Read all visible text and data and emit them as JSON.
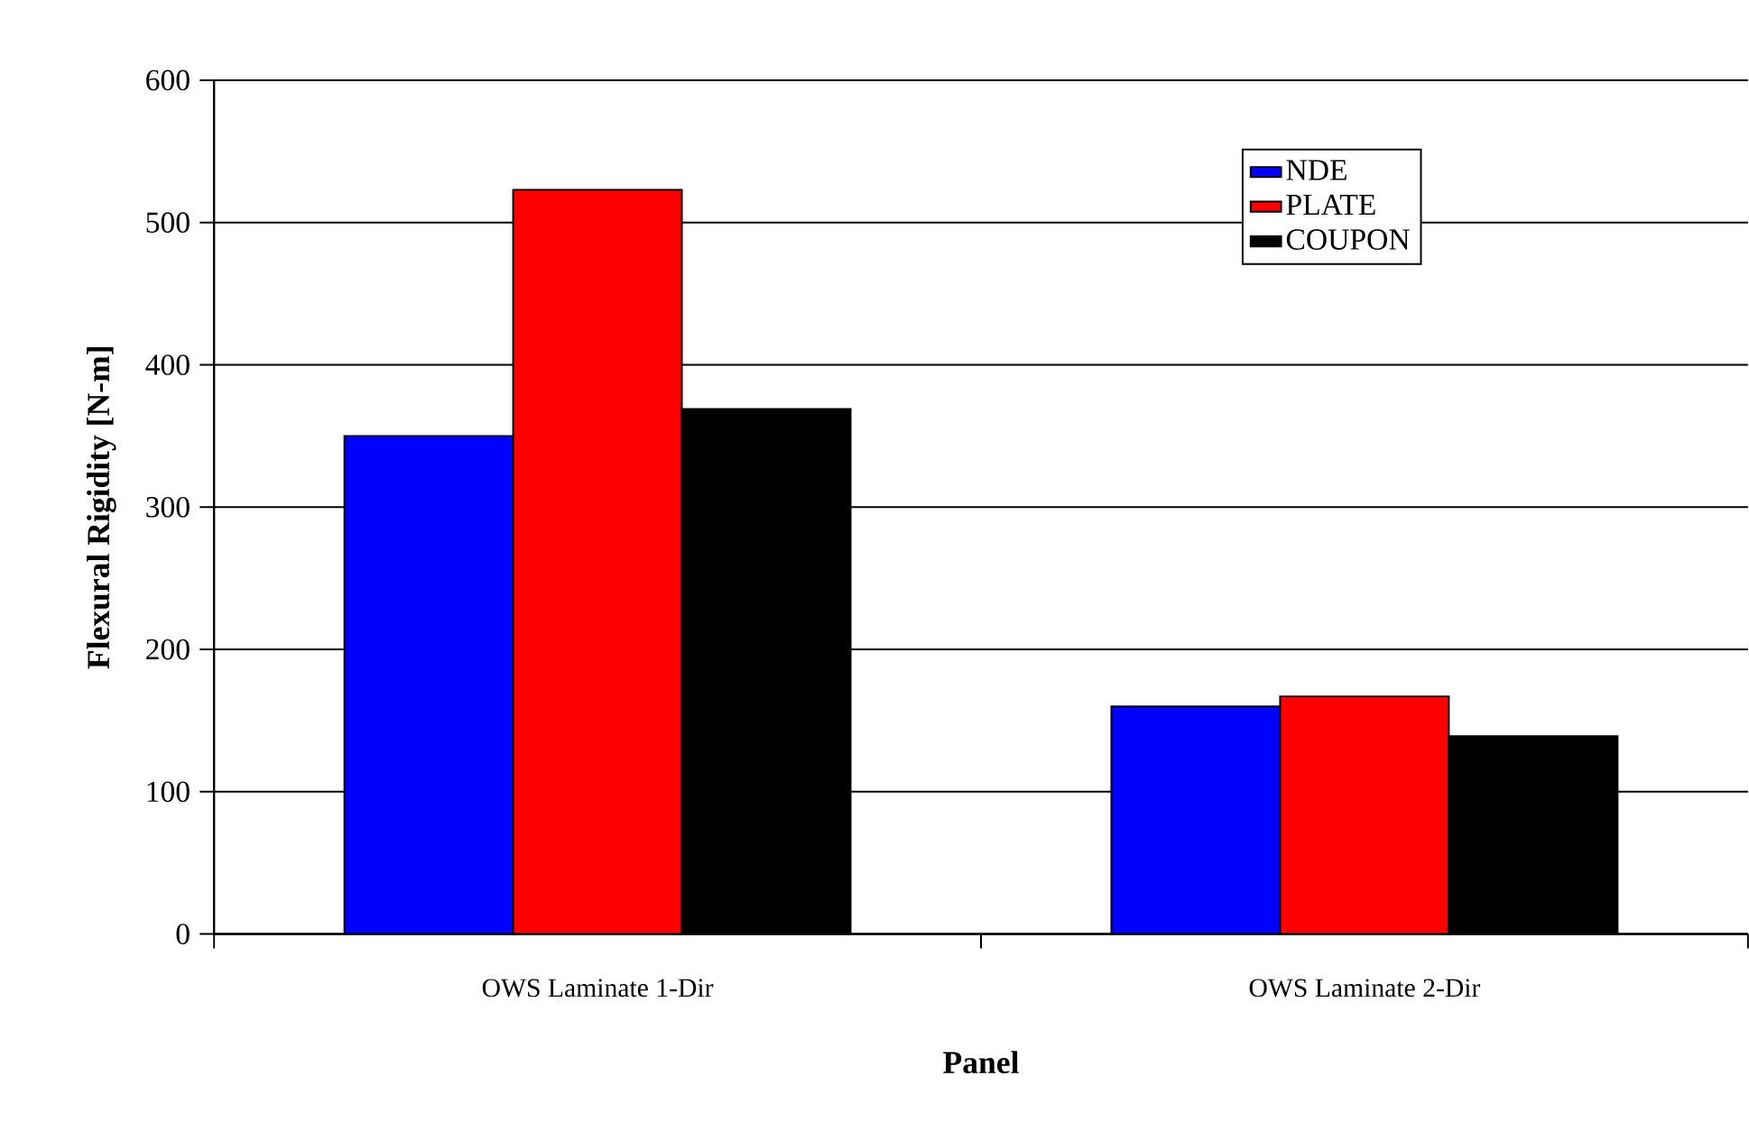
{
  "chart_data": {
    "type": "bar",
    "xlabel": "Panel",
    "ylabel": "Flexural Rigidity [N-m]",
    "categories": [
      "OWS Laminate 1-Dir",
      "OWS Laminate 2-Dir"
    ],
    "series": [
      {
        "name": "NDE",
        "color": "#0000ff",
        "values": [
          350,
          160
        ]
      },
      {
        "name": "PLATE",
        "color": "#ff0000",
        "values": [
          523,
          167
        ]
      },
      {
        "name": "COUPON",
        "color": "#000000",
        "values": [
          369,
          139
        ]
      }
    ],
    "ylim": [
      0,
      600
    ],
    "yticks": [
      0,
      100,
      200,
      300,
      400,
      500,
      600
    ],
    "grid": "y",
    "legend": "top right"
  }
}
